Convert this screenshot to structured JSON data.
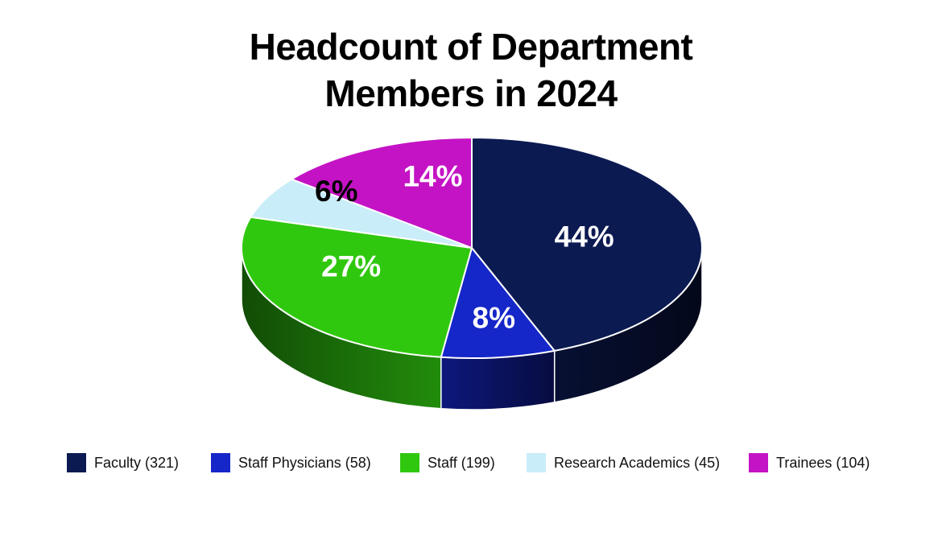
{
  "page": {
    "background": "#FFFFFF"
  },
  "chart_data": {
    "type": "pie",
    "effect": "3d",
    "title": "Headcount of Department Members in 2024",
    "title_lines": [
      "Headcount of Department",
      "Members in 2024"
    ],
    "start_angle_deg": 0,
    "direction": "clockwise",
    "legend_position": "bottom",
    "slices": [
      {
        "label": "Faculty",
        "count": 321,
        "percent": 44,
        "percent_label": "44%",
        "color": "#0C1A52",
        "label_color": "#FFFFFF",
        "legend_label": "Faculty (321)"
      },
      {
        "label": "Staff Physicians",
        "count": 58,
        "percent": 8,
        "percent_label": "8%",
        "color": "#1527C8",
        "label_color": "#FFFFFF",
        "legend_label": "Staff Physicians (58)"
      },
      {
        "label": "Staff",
        "count": 199,
        "percent": 27,
        "percent_label": "27%",
        "color": "#30C80F",
        "label_color": "#FFFFFF",
        "legend_label": "Staff (199)"
      },
      {
        "label": "Research Academics",
        "count": 45,
        "percent": 6,
        "percent_label": "6%",
        "color": "#C9EDF9",
        "label_color": "#000000",
        "legend_label": "Research Academics (45)"
      },
      {
        "label": "Trainees",
        "count": 104,
        "percent": 14,
        "percent_label": "14%",
        "color": "#C413C4",
        "label_color": "#FFFFFF",
        "legend_label": "Trainees (104)"
      }
    ]
  }
}
